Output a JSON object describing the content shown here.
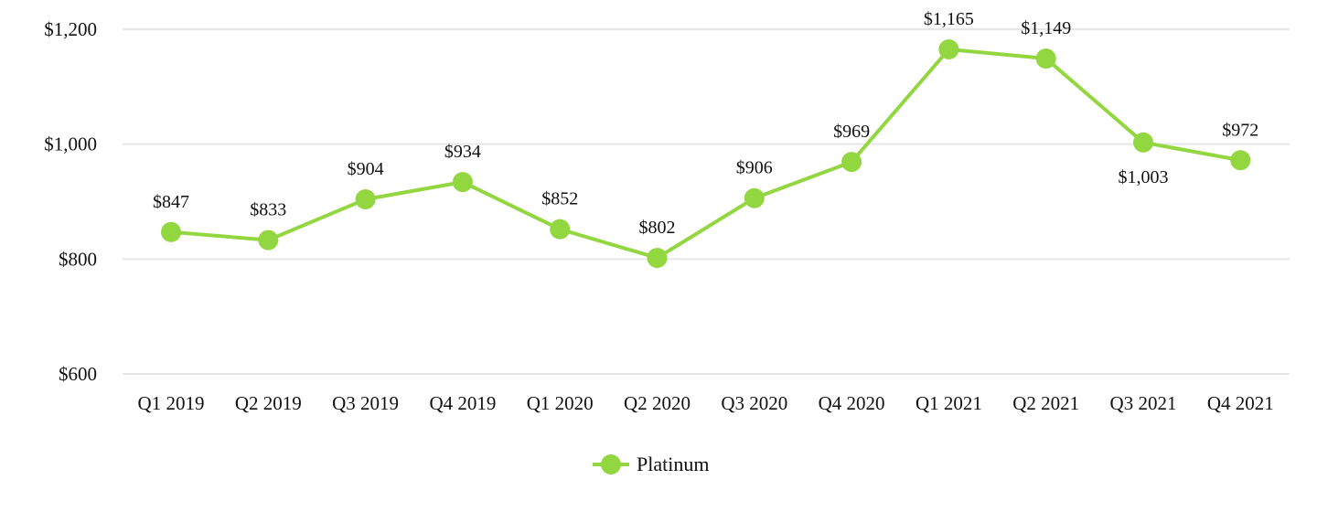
{
  "chart_data": {
    "type": "line",
    "categories": [
      "Q1 2019",
      "Q2 2019",
      "Q3 2019",
      "Q4 2019",
      "Q1 2020",
      "Q2 2020",
      "Q3 2020",
      "Q4 2020",
      "Q1 2021",
      "Q2 2021",
      "Q3 2021",
      "Q4 2021"
    ],
    "series": [
      {
        "name": "Platinum",
        "values": [
          847,
          833,
          904,
          934,
          852,
          802,
          906,
          969,
          1165,
          1149,
          1003,
          972
        ],
        "labels": [
          "$847",
          "$833",
          "$904",
          "$934",
          "$852",
          "$802",
          "$906",
          "$969",
          "$1,165",
          "$1,149",
          "$1,003",
          "$972"
        ],
        "color": "#92d640"
      }
    ],
    "ylim": [
      600,
      1200
    ],
    "yticks": [
      600,
      800,
      1000,
      1200
    ],
    "ytick_labels": [
      "$600",
      "$800",
      "$1,000",
      "$1,200"
    ],
    "grid": true,
    "grid_color": "#e6e6e6",
    "legend": {
      "position": "bottom-center",
      "label": "Platinum"
    },
    "title": "",
    "xlabel": "",
    "ylabel": ""
  }
}
